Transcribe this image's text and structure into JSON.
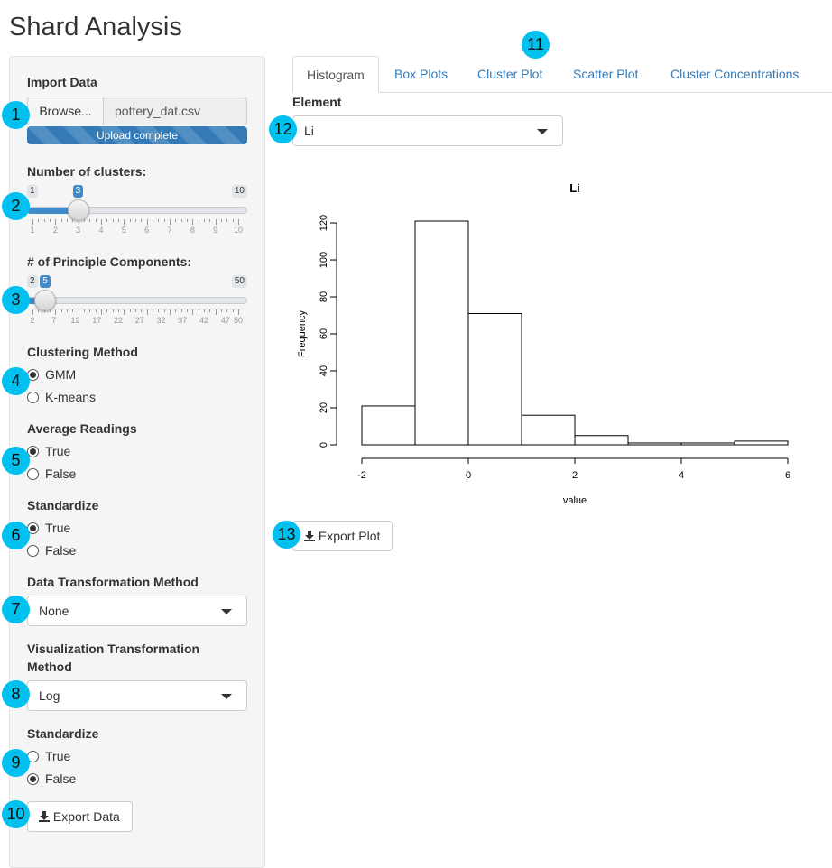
{
  "app": {
    "title": "Shard Analysis"
  },
  "sidebar": {
    "import": {
      "label": "Import Data",
      "browse_label": "Browse...",
      "file_name": "pottery_dat.csv",
      "progress_text": "Upload complete",
      "progress": 1.0
    },
    "clusters": {
      "label": "Number of clusters:",
      "min": 1,
      "max": 10,
      "value": 3,
      "min_label": "1",
      "max_label": "10",
      "value_label": "3",
      "tick_labels": [
        "1",
        "2",
        "3",
        "4",
        "5",
        "6",
        "7",
        "8",
        "9",
        "10"
      ]
    },
    "pcs": {
      "label": "# of Principle Components:",
      "min": 2,
      "max": 50,
      "value": 5,
      "min_label": "2",
      "max_label": "50",
      "value_label": "5",
      "tick_labels": [
        "2",
        "7",
        "12",
        "17",
        "22",
        "27",
        "32",
        "37",
        "42",
        "47",
        "50"
      ]
    },
    "clustering_method": {
      "label": "Clustering Method",
      "options": [
        "GMM",
        "K-means"
      ],
      "selected": "GMM"
    },
    "average_readings": {
      "label": "Average Readings",
      "options": [
        "True",
        "False"
      ],
      "selected": "True"
    },
    "standardize": {
      "label": "Standardize",
      "options": [
        "True",
        "False"
      ],
      "selected": "True"
    },
    "data_transform": {
      "label": "Data Transformation Method",
      "value": "None"
    },
    "vis_transform": {
      "label_line1": "Visualization Transformation",
      "label_line2": "Method",
      "value": "Log"
    },
    "standardize_vis": {
      "label": "Standardize",
      "options": [
        "True",
        "False"
      ],
      "selected": "False"
    },
    "export_data_label": "Export Data"
  },
  "tabs": [
    {
      "label": "Histogram",
      "active": true
    },
    {
      "label": "Box Plots",
      "active": false
    },
    {
      "label": "Cluster Plot",
      "active": false
    },
    {
      "label": "Scatter Plot",
      "active": false
    },
    {
      "label": "Cluster Concentrations",
      "active": false
    }
  ],
  "main": {
    "element": {
      "label": "Element",
      "value": "Li"
    },
    "export_plot_label": "Export Plot"
  },
  "badges": [
    "1",
    "2",
    "3",
    "4",
    "5",
    "6",
    "7",
    "8",
    "9",
    "10",
    "11",
    "12",
    "13"
  ],
  "colors": {
    "accent": "#337ab7",
    "slider": "#428bca",
    "badge": "#00c0f0"
  },
  "chart_data": {
    "type": "bar",
    "title": "Li",
    "xlabel": "value",
    "ylabel": "Frequency",
    "bins": [
      [
        -2,
        -1
      ],
      [
        -1,
        0
      ],
      [
        0,
        1
      ],
      [
        1,
        2
      ],
      [
        2,
        3
      ],
      [
        3,
        4
      ],
      [
        4,
        5
      ],
      [
        5,
        6
      ]
    ],
    "values": [
      21,
      121,
      71,
      16,
      5,
      1,
      1,
      2
    ],
    "xlim": [
      -2,
      6
    ],
    "ylim": [
      0,
      125
    ],
    "xticks": [
      "-2",
      "0",
      "2",
      "4",
      "6"
    ],
    "yticks": [
      "0",
      "20",
      "40",
      "60",
      "80",
      "100",
      "120"
    ]
  }
}
